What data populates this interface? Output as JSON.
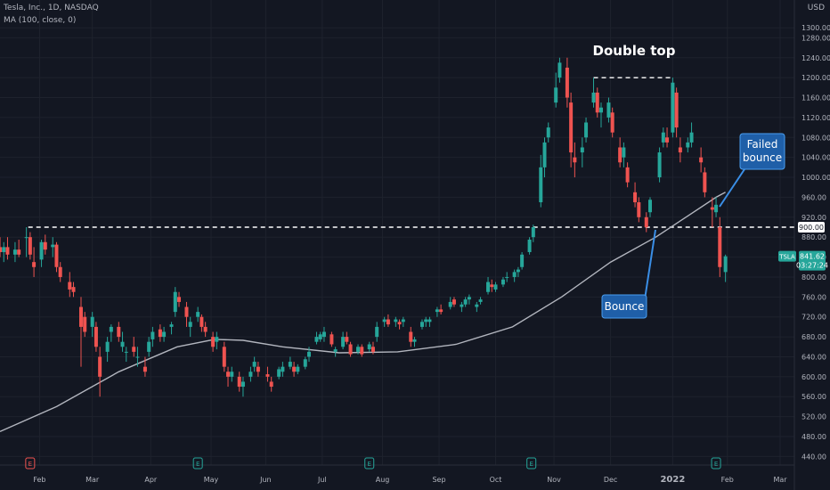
{
  "header": {
    "symbol_line": "Tesla, Inc., 1D, NASDAQ",
    "indicator_line": "MA (100, close, 0)",
    "currency": "USD"
  },
  "colors": {
    "background": "#131722",
    "up": "#26a69a",
    "down": "#ef5350",
    "ma": "#b2b5be",
    "grid": "#1e222d",
    "axis_text": "#b2b5be",
    "callout": "#1f5fa8"
  },
  "price_tag": {
    "label": "TSLA",
    "price": "841.62",
    "countdown": "03:27:24"
  },
  "level_tag": "900.00",
  "annotations": {
    "title": "Double top",
    "bounce": "Bounce",
    "failed_bounce_1": "Failed",
    "failed_bounce_2": "bounce"
  },
  "chart_data": {
    "type": "candlestick",
    "ylim": [
      430,
      1300
    ],
    "y_ticks": [
      "1300.00",
      "1280.00",
      "1240.00",
      "1200.00",
      "1160.00",
      "1120.00",
      "1080.00",
      "1040.00",
      "1000.00",
      "960.00",
      "920.00",
      "880.00",
      "840.00",
      "800.00",
      "760.00",
      "720.00",
      "680.00",
      "640.00",
      "600.00",
      "560.00",
      "520.00",
      "480.00",
      "440.00"
    ],
    "x_ticks": [
      "Feb",
      "Mar",
      "Apr",
      "May",
      "Jun",
      "Jul",
      "Aug",
      "Sep",
      "Oct",
      "Nov",
      "Dec",
      "2022",
      "Feb",
      "Mar"
    ],
    "x_tick_dates": [
      "2021-02-01",
      "2021-03-01",
      "2021-04-01",
      "2021-05-03",
      "2021-06-01",
      "2021-07-01",
      "2021-08-02",
      "2021-09-01",
      "2021-10-01",
      "2021-11-01",
      "2021-12-01",
      "2022-01-03",
      "2022-02-01",
      "2022-03-01"
    ],
    "x_range": [
      "2021-01-11",
      "2022-03-01"
    ],
    "levels": [
      {
        "value": 900,
        "from": "2021-01-26",
        "to": "2022-02-01"
      },
      {
        "value": 1200,
        "from": "2021-11-22",
        "to": "2022-01-03"
      }
    ],
    "events": [
      {
        "date": "2021-01-27",
        "type": "earnings",
        "color": "#ef5350"
      },
      {
        "date": "2021-04-26",
        "type": "earnings",
        "color": "#26a69a"
      },
      {
        "date": "2021-07-26",
        "type": "earnings",
        "color": "#26a69a"
      },
      {
        "date": "2021-10-20",
        "type": "earnings",
        "color": "#26a69a"
      },
      {
        "date": "2022-01-26",
        "type": "earnings",
        "color": "#26a69a"
      }
    ],
    "ohlc": [
      [
        "2021-01-11",
        860,
        880,
        840,
        850
      ],
      [
        "2021-01-13",
        850,
        870,
        830,
        860
      ],
      [
        "2021-01-15",
        860,
        880,
        835,
        845
      ],
      [
        "2021-01-19",
        845,
        870,
        830,
        855
      ],
      [
        "2021-01-21",
        855,
        875,
        840,
        845
      ],
      [
        "2021-01-25",
        880,
        900,
        840,
        880
      ],
      [
        "2021-01-27",
        880,
        890,
        835,
        845
      ],
      [
        "2021-01-29",
        830,
        860,
        800,
        820
      ],
      [
        "2021-02-02",
        835,
        875,
        820,
        870
      ],
      [
        "2021-02-04",
        870,
        885,
        845,
        855
      ],
      [
        "2021-02-08",
        860,
        880,
        840,
        865
      ],
      [
        "2021-02-10",
        865,
        870,
        810,
        820
      ],
      [
        "2021-02-12",
        820,
        830,
        790,
        800
      ],
      [
        "2021-02-17",
        790,
        810,
        760,
        775
      ],
      [
        "2021-02-19",
        780,
        790,
        760,
        770
      ],
      [
        "2021-02-23",
        740,
        760,
        620,
        700
      ],
      [
        "2021-02-25",
        720,
        730,
        680,
        690
      ],
      [
        "2021-03-01",
        700,
        730,
        680,
        720
      ],
      [
        "2021-03-03",
        700,
        710,
        650,
        660
      ],
      [
        "2021-03-05",
        640,
        660,
        560,
        600
      ],
      [
        "2021-03-09",
        650,
        680,
        630,
        670
      ],
      [
        "2021-03-11",
        690,
        705,
        670,
        700
      ],
      [
        "2021-03-15",
        700,
        710,
        670,
        680
      ],
      [
        "2021-03-17",
        660,
        690,
        650,
        670
      ],
      [
        "2021-03-19",
        650,
        660,
        630,
        650
      ],
      [
        "2021-03-23",
        660,
        680,
        640,
        650
      ],
      [
        "2021-03-25",
        640,
        660,
        620,
        640
      ],
      [
        "2021-03-29",
        620,
        640,
        600,
        610
      ],
      [
        "2021-03-31",
        650,
        680,
        640,
        670
      ],
      [
        "2021-04-02",
        675,
        700,
        660,
        690
      ],
      [
        "2021-04-06",
        695,
        705,
        670,
        680
      ],
      [
        "2021-04-08",
        680,
        700,
        670,
        690
      ],
      [
        "2021-04-12",
        700,
        710,
        685,
        705
      ],
      [
        "2021-04-14",
        730,
        780,
        720,
        770
      ],
      [
        "2021-04-16",
        760,
        770,
        740,
        750
      ],
      [
        "2021-04-20",
        740,
        750,
        700,
        720
      ],
      [
        "2021-04-22",
        700,
        720,
        680,
        710
      ],
      [
        "2021-04-26",
        720,
        740,
        710,
        730
      ],
      [
        "2021-04-28",
        720,
        725,
        690,
        700
      ],
      [
        "2021-04-30",
        700,
        710,
        680,
        690
      ],
      [
        "2021-05-04",
        680,
        690,
        650,
        660
      ],
      [
        "2021-05-06",
        670,
        690,
        655,
        680
      ],
      [
        "2021-05-10",
        660,
        670,
        610,
        620
      ],
      [
        "2021-05-12",
        610,
        620,
        580,
        600
      ],
      [
        "2021-05-14",
        600,
        620,
        590,
        610
      ],
      [
        "2021-05-18",
        600,
        610,
        570,
        580
      ],
      [
        "2021-05-20",
        580,
        600,
        560,
        590
      ],
      [
        "2021-05-24",
        600,
        620,
        590,
        610
      ],
      [
        "2021-05-26",
        620,
        640,
        610,
        630
      ],
      [
        "2021-05-28",
        620,
        630,
        600,
        610
      ],
      [
        "2021-06-02",
        605,
        620,
        590,
        600
      ],
      [
        "2021-06-04",
        590,
        600,
        570,
        580
      ],
      [
        "2021-06-08",
        600,
        620,
        595,
        615
      ],
      [
        "2021-06-10",
        610,
        630,
        600,
        620
      ],
      [
        "2021-06-14",
        620,
        640,
        615,
        630
      ],
      [
        "2021-06-16",
        620,
        630,
        600,
        610
      ],
      [
        "2021-06-18",
        610,
        625,
        605,
        620
      ],
      [
        "2021-06-22",
        620,
        640,
        615,
        635
      ],
      [
        "2021-06-24",
        640,
        660,
        630,
        650
      ],
      [
        "2021-06-28",
        670,
        690,
        665,
        680
      ],
      [
        "2021-06-30",
        675,
        690,
        670,
        685
      ],
      [
        "2021-07-02",
        680,
        700,
        670,
        690
      ],
      [
        "2021-07-06",
        685,
        690,
        660,
        665
      ],
      [
        "2021-07-08",
        650,
        660,
        640,
        655
      ],
      [
        "2021-07-12",
        660,
        690,
        655,
        680
      ],
      [
        "2021-07-14",
        680,
        690,
        665,
        670
      ],
      [
        "2021-07-16",
        665,
        670,
        640,
        645
      ],
      [
        "2021-07-20",
        650,
        665,
        645,
        660
      ],
      [
        "2021-07-22",
        660,
        665,
        640,
        645
      ],
      [
        "2021-07-26",
        655,
        670,
        650,
        665
      ],
      [
        "2021-07-28",
        660,
        670,
        645,
        650
      ],
      [
        "2021-07-30",
        680,
        710,
        670,
        700
      ],
      [
        "2021-08-03",
        710,
        720,
        700,
        715
      ],
      [
        "2021-08-05",
        715,
        725,
        700,
        705
      ],
      [
        "2021-08-09",
        710,
        720,
        700,
        715
      ],
      [
        "2021-08-11",
        710,
        715,
        695,
        705
      ],
      [
        "2021-08-13",
        710,
        720,
        700,
        715
      ],
      [
        "2021-08-17",
        690,
        700,
        660,
        670
      ],
      [
        "2021-08-19",
        670,
        680,
        660,
        675
      ],
      [
        "2021-08-23",
        700,
        715,
        695,
        710
      ],
      [
        "2021-08-25",
        710,
        720,
        700,
        715
      ],
      [
        "2021-08-27",
        710,
        720,
        700,
        715
      ],
      [
        "2021-08-31",
        730,
        740,
        720,
        735
      ],
      [
        "2021-09-02",
        735,
        745,
        725,
        730
      ],
      [
        "2021-09-07",
        740,
        760,
        735,
        750
      ],
      [
        "2021-09-09",
        755,
        760,
        740,
        745
      ],
      [
        "2021-09-13",
        740,
        750,
        730,
        745
      ],
      [
        "2021-09-15",
        745,
        760,
        740,
        755
      ],
      [
        "2021-09-17",
        755,
        765,
        745,
        760
      ],
      [
        "2021-09-21",
        740,
        750,
        730,
        745
      ],
      [
        "2021-09-23",
        750,
        760,
        745,
        755
      ],
      [
        "2021-09-27",
        770,
        800,
        765,
        790
      ],
      [
        "2021-09-29",
        785,
        795,
        770,
        780
      ],
      [
        "2021-10-01",
        775,
        790,
        770,
        785
      ],
      [
        "2021-10-05",
        785,
        800,
        780,
        795
      ],
      [
        "2021-10-07",
        800,
        810,
        790,
        800
      ],
      [
        "2021-10-11",
        800,
        815,
        790,
        810
      ],
      [
        "2021-10-13",
        810,
        820,
        800,
        815
      ],
      [
        "2021-10-15",
        820,
        850,
        815,
        845
      ],
      [
        "2021-10-19",
        850,
        880,
        845,
        875
      ],
      [
        "2021-10-21",
        880,
        905,
        870,
        900
      ],
      [
        "2021-10-25",
        950,
        1045,
        940,
        1020
      ],
      [
        "2021-10-27",
        1020,
        1080,
        1000,
        1070
      ],
      [
        "2021-10-29",
        1080,
        1110,
        1070,
        1100
      ],
      [
        "2021-11-02",
        1150,
        1210,
        1140,
        1180
      ],
      [
        "2021-11-04",
        1200,
        1240,
        1190,
        1230
      ],
      [
        "2021-11-08",
        1220,
        1240,
        1140,
        1160
      ],
      [
        "2021-11-10",
        1150,
        1170,
        1020,
        1050
      ],
      [
        "2021-11-12",
        1040,
        1070,
        1000,
        1030
      ],
      [
        "2021-11-16",
        1050,
        1080,
        1020,
        1060
      ],
      [
        "2021-11-18",
        1080,
        1120,
        1070,
        1110
      ],
      [
        "2021-11-22",
        1150,
        1200,
        1140,
        1170
      ],
      [
        "2021-11-24",
        1170,
        1180,
        1120,
        1130
      ],
      [
        "2021-11-26",
        1130,
        1150,
        1100,
        1140
      ],
      [
        "2021-11-30",
        1120,
        1160,
        1110,
        1150
      ],
      [
        "2021-12-02",
        1130,
        1140,
        1080,
        1090
      ],
      [
        "2021-12-06",
        1060,
        1080,
        1020,
        1030
      ],
      [
        "2021-12-08",
        1040,
        1070,
        1020,
        1060
      ],
      [
        "2021-12-10",
        1020,
        1030,
        980,
        990
      ],
      [
        "2021-12-14",
        970,
        990,
        940,
        950
      ],
      [
        "2021-12-16",
        950,
        960,
        910,
        920
      ],
      [
        "2021-12-20",
        920,
        930,
        890,
        900
      ],
      [
        "2021-12-22",
        930,
        960,
        920,
        955
      ],
      [
        "2021-12-27",
        1000,
        1060,
        990,
        1050
      ],
      [
        "2021-12-29",
        1070,
        1100,
        1060,
        1090
      ],
      [
        "2021-12-31",
        1080,
        1100,
        1060,
        1070
      ],
      [
        "2022-01-03",
        1090,
        1200,
        1080,
        1190
      ],
      [
        "2022-01-05",
        1170,
        1180,
        1080,
        1100
      ],
      [
        "2022-01-07",
        1060,
        1080,
        1030,
        1050
      ],
      [
        "2022-01-11",
        1060,
        1080,
        1050,
        1070
      ],
      [
        "2022-01-13",
        1070,
        1110,
        1060,
        1090
      ],
      [
        "2022-01-18",
        1040,
        1060,
        1010,
        1030
      ],
      [
        "2022-01-20",
        1010,
        1020,
        960,
        970
      ],
      [
        "2022-01-24",
        940,
        960,
        900,
        935
      ],
      [
        "2022-01-26",
        930,
        960,
        920,
        945
      ],
      [
        "2022-01-28",
        900,
        920,
        800,
        820
      ],
      [
        "2022-01-31",
        810,
        845,
        790,
        841.62
      ]
    ],
    "ma": [
      [
        "2021-01-11",
        490
      ],
      [
        "2021-02-10",
        540
      ],
      [
        "2021-03-15",
        610
      ],
      [
        "2021-04-15",
        660
      ],
      [
        "2021-05-05",
        675
      ],
      [
        "2021-05-20",
        673
      ],
      [
        "2021-06-10",
        660
      ],
      [
        "2021-07-10",
        648
      ],
      [
        "2021-08-10",
        650
      ],
      [
        "2021-09-10",
        665
      ],
      [
        "2021-10-10",
        700
      ],
      [
        "2021-11-05",
        760
      ],
      [
        "2021-12-01",
        830
      ],
      [
        "2021-12-25",
        880
      ],
      [
        "2022-01-10",
        920
      ],
      [
        "2022-01-26",
        960
      ],
      [
        "2022-01-31",
        970
      ]
    ]
  }
}
